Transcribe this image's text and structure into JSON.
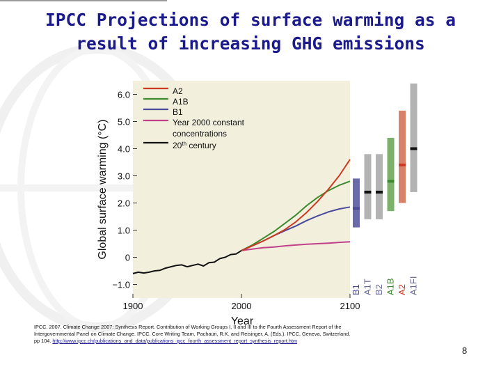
{
  "slide": {
    "title_line1": "IPCC Projections of surface warming as a",
    "title_line2": "result of increasing GHG emissions",
    "citation_line1": "IPCC. 2007. Climate Change 2007: Synthesis Report. Contribution of Working Groups I, II and III to the Fourth Assessment Report of the",
    "citation_line2": "Intergovernmental Panel on Climate Change. IPCC. Core Writing Team, Pachauri, R.K. and Reisinger, A. (Eds.). IPCC, Geneva, Switzerland.",
    "citation_line3": "pp 104.",
    "citation_link": "http://www.ipcc.ch/publications_and_data/publications_ipcc_fourth_assessment_report_synthesis_report.htm",
    "page_number": "8"
  },
  "colors": {
    "title": "#1a1a8c",
    "A2": "#cc3a22",
    "A1B": "#3d8a2e",
    "B1": "#4a4a9a",
    "constant": "#c0408a",
    "century20": "#111111"
  },
  "chart_data": {
    "type": "line",
    "xlabel": "Year",
    "ylabel": "Global surface warming (°C)",
    "xlim": [
      1900,
      2100
    ],
    "ylim": [
      -1.5,
      6.5
    ],
    "x_ticks": [
      "1900",
      "2000",
      "2100"
    ],
    "y_ticks": [
      "6.0",
      "5.0",
      "4.0",
      "3.0",
      "2.0",
      "1.0",
      "0",
      "−1.0"
    ],
    "y_tick_values": [
      6,
      5,
      4,
      3,
      2,
      1,
      0,
      -1
    ],
    "legend_position": "top-left",
    "series": [
      {
        "name": "A2",
        "color": "#cc3a22",
        "x": [
          2000,
          2010,
          2020,
          2030,
          2040,
          2050,
          2060,
          2070,
          2080,
          2090,
          2100
        ],
        "y": [
          0.25,
          0.42,
          0.6,
          0.8,
          1.02,
          1.3,
          1.65,
          2.05,
          2.5,
          3.0,
          3.6
        ]
      },
      {
        "name": "A1B",
        "color": "#3d8a2e",
        "x": [
          2000,
          2010,
          2020,
          2030,
          2040,
          2050,
          2060,
          2070,
          2080,
          2090,
          2100
        ],
        "y": [
          0.25,
          0.45,
          0.7,
          0.95,
          1.25,
          1.55,
          1.9,
          2.2,
          2.45,
          2.65,
          2.8
        ]
      },
      {
        "name": "B1",
        "color": "#4a4a9a",
        "x": [
          2000,
          2010,
          2020,
          2030,
          2040,
          2050,
          2060,
          2070,
          2080,
          2090,
          2100
        ],
        "y": [
          0.25,
          0.42,
          0.6,
          0.8,
          0.98,
          1.15,
          1.35,
          1.52,
          1.67,
          1.78,
          1.85
        ]
      },
      {
        "name": "Year 2000 constant concentrations",
        "color": "#c0408a",
        "x": [
          2000,
          2010,
          2020,
          2030,
          2040,
          2050,
          2060,
          2070,
          2080,
          2090,
          2100
        ],
        "y": [
          0.25,
          0.3,
          0.35,
          0.38,
          0.42,
          0.45,
          0.48,
          0.5,
          0.52,
          0.55,
          0.57
        ]
      },
      {
        "name_prefix": "20",
        "name_sup": "th",
        "name_suffix": " century",
        "color": "#111111",
        "x": [
          1900,
          1905,
          1910,
          1915,
          1920,
          1925,
          1930,
          1935,
          1940,
          1945,
          1950,
          1955,
          1960,
          1965,
          1970,
          1975,
          1980,
          1985,
          1990,
          1995,
          2000
        ],
        "y": [
          -0.6,
          -0.55,
          -0.58,
          -0.55,
          -0.5,
          -0.48,
          -0.4,
          -0.35,
          -0.3,
          -0.28,
          -0.35,
          -0.3,
          -0.25,
          -0.32,
          -0.2,
          -0.18,
          -0.05,
          0.0,
          0.1,
          0.12,
          0.25
        ]
      }
    ],
    "range_bars": [
      {
        "label": "B1",
        "color": "#6a6aaa",
        "low": 1.1,
        "high": 2.9,
        "best": 1.8,
        "best_color": "#4a4a9a"
      },
      {
        "label": "A1T",
        "color": "#b3b3b3",
        "low": 1.4,
        "high": 3.8,
        "best": 2.4,
        "best_color": "#111111"
      },
      {
        "label": "B2",
        "color": "#b3b3b3",
        "low": 1.4,
        "high": 3.8,
        "best": 2.4,
        "best_color": "#111111"
      },
      {
        "label": "A1B",
        "color": "#7ab26a",
        "low": 1.7,
        "high": 4.4,
        "best": 2.8,
        "best_color": "#3d8a2e"
      },
      {
        "label": "A2",
        "color": "#d9826a",
        "low": 2.0,
        "high": 5.4,
        "best": 3.4,
        "best_color": "#cc3a22"
      },
      {
        "label": "A1FI",
        "color": "#b3b3b3",
        "low": 2.4,
        "high": 6.4,
        "best": 4.0,
        "best_color": "#111111"
      }
    ]
  }
}
